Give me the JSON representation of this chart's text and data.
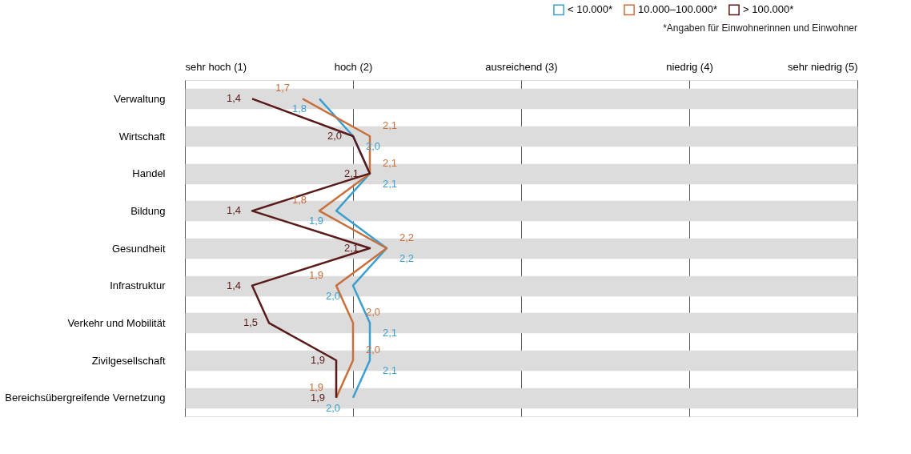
{
  "chart_data": {
    "type": "line",
    "orientation": "horizontal",
    "categories": [
      "Verwaltung",
      "Wirtschaft",
      "Handel",
      "Bildung",
      "Gesundheit",
      "Infrastruktur",
      "Verkehr und Mobilität",
      "Zivilgesellschaft",
      "Bereichsübergreifende Vernetzung"
    ],
    "series": [
      {
        "name": "< 10.000*",
        "color": "#3a9fcf",
        "values": [
          1.8,
          2.0,
          2.1,
          1.9,
          2.2,
          2.0,
          2.1,
          2.1,
          2.0
        ],
        "value_labels": [
          "1,8",
          "2,0",
          "2,1",
          "1,9",
          "2,2",
          "2,0",
          "2,1",
          "2,1",
          "2,0"
        ]
      },
      {
        "name": "10.000–100.000*",
        "color": "#c8703c",
        "values": [
          1.7,
          2.1,
          2.1,
          1.8,
          2.2,
          1.9,
          2.0,
          2.0,
          1.9
        ],
        "value_labels": [
          "1,7",
          "2,1",
          "2,1",
          "1,8",
          "2,2",
          "1,9",
          "2,0",
          "2,0",
          "1,9"
        ]
      },
      {
        "name": "> 100.000*",
        "color": "#5a1a1a",
        "values": [
          1.4,
          2.0,
          2.1,
          1.4,
          2.1,
          1.4,
          1.5,
          1.9,
          1.9
        ],
        "value_labels": [
          "1,4",
          "2,0",
          "2,1",
          "1,4",
          "2,1",
          "1,4",
          "1,5",
          "1,9",
          "1,9"
        ]
      }
    ],
    "xlim": [
      1,
      5
    ],
    "xticks": [
      {
        "value": 1,
        "label": "sehr hoch (1)"
      },
      {
        "value": 2,
        "label": "hoch (2)"
      },
      {
        "value": 3,
        "label": "ausreichend (3)"
      },
      {
        "value": 4,
        "label": "niedrig (4)"
      },
      {
        "value": 5,
        "label": "sehr niedrig (5)"
      }
    ],
    "grid": true,
    "legend": "top right",
    "marker": "none",
    "line_style": "solid",
    "annotations": [
      "*Angaben für Einwohnerinnen und Einwohner"
    ]
  }
}
